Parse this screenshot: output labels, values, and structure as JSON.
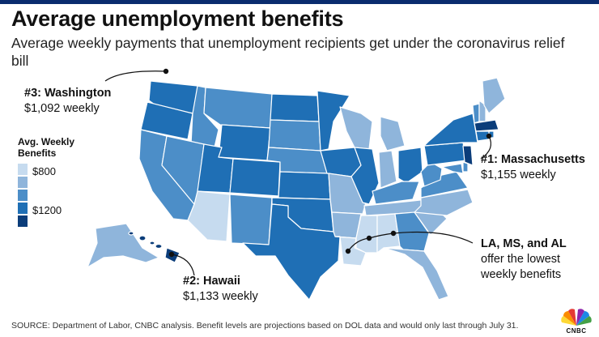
{
  "header": {
    "title": "Average unemployment benefits",
    "subtitle": "Average weekly payments that unemployment recipients get under the coronavirus relief bill"
  },
  "legend": {
    "title_line1": "Avg. Weekly",
    "title_line2": "Benefits",
    "min_label": "$800",
    "max_label": "$1200",
    "colors": [
      "#c6dbef",
      "#8fb5db",
      "#4c8ec8",
      "#1f6fb5",
      "#0b3d7a"
    ]
  },
  "callouts": {
    "washington": {
      "heading": "#3: Washington",
      "value": "$1,092 weekly"
    },
    "massachusetts": {
      "heading": "#1: Massachusetts",
      "value": "$1,155 weekly"
    },
    "hawaii": {
      "heading": "#2: Hawaii",
      "value": "$1,133 weekly"
    },
    "lowest": {
      "heading": "LA, MS, and AL",
      "line2": "offer the lowest",
      "line3": "weekly benefits"
    }
  },
  "source": "SOURCE: Department of Labor, CNBC analysis. Benefit levels are projections based on DOL data and would only last through July 31.",
  "brand": {
    "wordmark": "CNBC"
  },
  "colors": {
    "accent": "#0a2c6e",
    "state_border": "#ffffff"
  }
}
